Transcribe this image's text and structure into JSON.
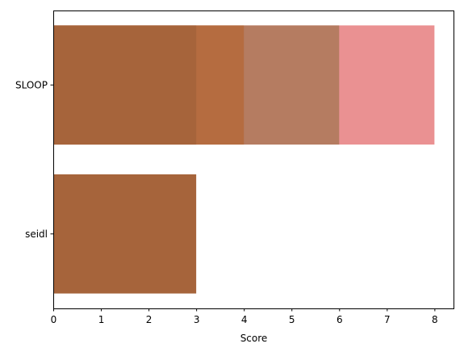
{
  "chart_data": {
    "type": "bar",
    "orientation": "horizontal",
    "stacked": false,
    "overlapping": true,
    "categories": [
      "SLOOP",
      "seidl"
    ],
    "series": [
      {
        "values": [
          8,
          null
        ],
        "color": "#ea9192"
      },
      {
        "values": [
          6,
          null
        ],
        "color": "#b57c61"
      },
      {
        "values": [
          4,
          null
        ],
        "color": "#b56c40"
      },
      {
        "values": [
          3,
          3
        ],
        "color": "#a6643b"
      }
    ],
    "title": "",
    "xlabel": "Score",
    "ylabel": "",
    "xlim": [
      0,
      8.4
    ],
    "xticks": [
      "0",
      "1",
      "2",
      "3",
      "4",
      "5",
      "6",
      "7",
      "8"
    ],
    "grid": false,
    "legend": "none"
  }
}
